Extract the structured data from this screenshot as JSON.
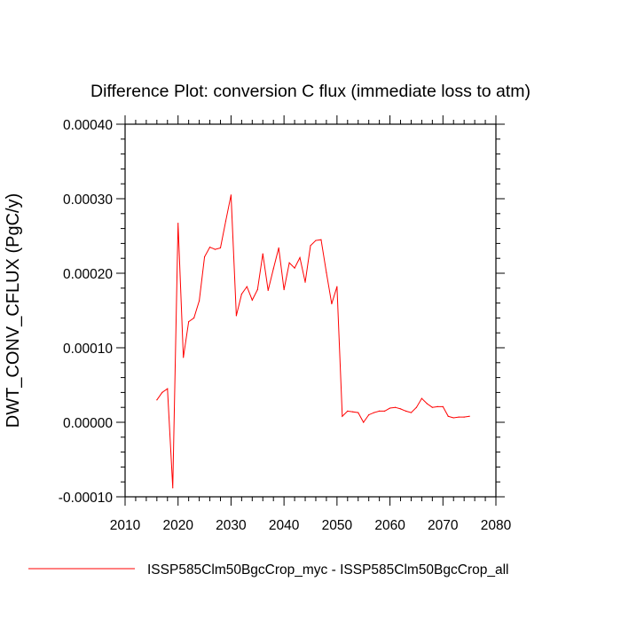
{
  "chart_data": {
    "type": "line",
    "title": "Difference Plot: conversion C flux (immediate loss to atm)",
    "xlabel": "",
    "ylabel": "DWT_CONV_CFLUX  (PgC/y)",
    "xlim": [
      2010,
      2080
    ],
    "ylim": [
      -0.0001,
      0.0004
    ],
    "x_ticks": [
      2010,
      2020,
      2030,
      2040,
      2050,
      2060,
      2070,
      2080
    ],
    "x_tick_labels": [
      "2010",
      "2020",
      "2030",
      "2040",
      "2050",
      "2060",
      "2070",
      "2080"
    ],
    "y_ticks": [
      -0.0001,
      0,
      0.0001,
      0.0002,
      0.0003,
      0.0004
    ],
    "y_tick_labels": [
      "-0.00010",
      "0.00000",
      "0.00010",
      "0.00020",
      "0.00030",
      "0.00040"
    ],
    "grid": false,
    "legend_position": "bottom",
    "series": [
      {
        "name": "ISSP585Clm50BgcCrop_myc - ISSP585Clm50BgcCrop_all",
        "color": "#ff0000",
        "x": [
          2016,
          2017,
          2018,
          2019,
          2020,
          2021,
          2022,
          2023,
          2024,
          2025,
          2026,
          2027,
          2028,
          2029,
          2030,
          2031,
          2032,
          2033,
          2034,
          2035,
          2036,
          2037,
          2038,
          2039,
          2040,
          2041,
          2042,
          2043,
          2044,
          2045,
          2046,
          2047,
          2048,
          2049,
          2050,
          2051,
          2052,
          2053,
          2054,
          2055,
          2056,
          2057,
          2058,
          2059,
          2060,
          2061,
          2062,
          2063,
          2064,
          2065,
          2066,
          2067,
          2068,
          2069,
          2070,
          2071,
          2072,
          2073,
          2074,
          2075
        ],
        "y": [
          3e-05,
          4e-05,
          4.5e-05,
          -8.8e-05,
          0.000267,
          8.7e-05,
          0.000135,
          0.00014,
          0.000163,
          0.000222,
          0.000235,
          0.000232,
          0.000234,
          0.00027,
          0.000305,
          0.000143,
          0.000172,
          0.000182,
          0.000164,
          0.000178,
          0.000226,
          0.000177,
          0.000206,
          0.000234,
          0.000178,
          0.000214,
          0.000207,
          0.000221,
          0.000188,
          0.000237,
          0.000244,
          0.000245,
          0.000201,
          0.000159,
          0.000182,
          8e-06,
          1.5e-05,
          1.4e-05,
          1.3e-05,
          0.0,
          1e-05,
          1.3e-05,
          1.5e-05,
          1.5e-05,
          1.9e-05,
          2e-05,
          1.8e-05,
          1.5e-05,
          1.3e-05,
          2e-05,
          3.2e-05,
          2.5e-05,
          2e-05,
          2.1e-05,
          2.1e-05,
          8e-06,
          6e-06,
          7e-06,
          7e-06,
          8e-06
        ]
      }
    ]
  }
}
